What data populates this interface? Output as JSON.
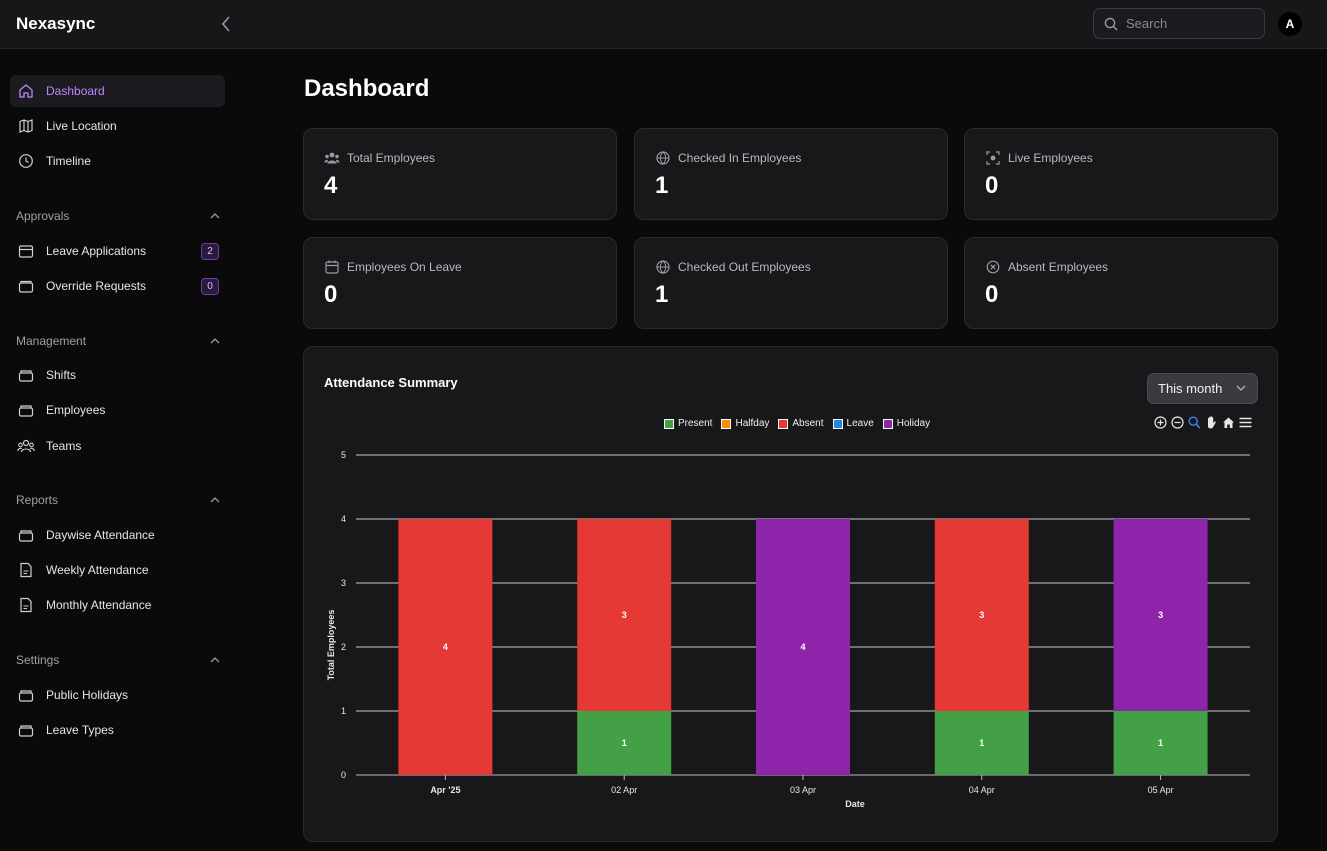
{
  "header": {
    "brand": "Nexasync",
    "search_placeholder": "Search",
    "avatar_initial": "A"
  },
  "sidebar": {
    "top_items": [
      {
        "label": "Dashboard",
        "icon": "home-icon",
        "active": true
      },
      {
        "label": "Live Location",
        "icon": "map-icon"
      },
      {
        "label": "Timeline",
        "icon": "clock-icon"
      }
    ],
    "sections": [
      {
        "title": "Approvals",
        "items": [
          {
            "label": "Leave Applications",
            "icon": "calendar-icon",
            "badge": "2"
          },
          {
            "label": "Override Requests",
            "icon": "tray-icon",
            "badge": "0"
          }
        ]
      },
      {
        "title": "Management",
        "items": [
          {
            "label": "Shifts",
            "icon": "layers-icon"
          },
          {
            "label": "Employees",
            "icon": "layers-icon"
          },
          {
            "label": "Teams",
            "icon": "users-icon"
          }
        ]
      },
      {
        "title": "Reports",
        "items": [
          {
            "label": "Daywise Attendance",
            "icon": "layers-icon"
          },
          {
            "label": "Weekly Attendance",
            "icon": "document-icon"
          },
          {
            "label": "Monthly Attendance",
            "icon": "document-icon"
          }
        ]
      },
      {
        "title": "Settings",
        "items": [
          {
            "label": "Public Holidays",
            "icon": "layers-icon"
          },
          {
            "label": "Leave Types",
            "icon": "layers-icon"
          }
        ]
      }
    ]
  },
  "main": {
    "title": "Dashboard",
    "stats": [
      {
        "label": "Total Employees",
        "value": "4",
        "icon": "users-icon"
      },
      {
        "label": "Checked In Employees",
        "value": "1",
        "icon": "globe-icon"
      },
      {
        "label": "Live Employees",
        "value": "0",
        "icon": "target-icon"
      },
      {
        "label": "Employees On Leave",
        "value": "0",
        "icon": "calendar-icon"
      },
      {
        "label": "Checked Out Employees",
        "value": "1",
        "icon": "globe-icon"
      },
      {
        "label": "Absent Employees",
        "value": "0",
        "icon": "x-circle-icon"
      }
    ],
    "attendance": {
      "title": "Attendance Summary",
      "range": "This month"
    }
  },
  "chart_data": {
    "type": "bar",
    "stacked": true,
    "categories": [
      "Apr '25",
      "02 Apr",
      "03 Apr",
      "04 Apr",
      "05 Apr"
    ],
    "series": [
      {
        "name": "Present",
        "color": "#43a047",
        "values": [
          0,
          1,
          0,
          1,
          1
        ]
      },
      {
        "name": "Halfday",
        "color": "#fb8c00",
        "values": [
          0,
          0,
          0,
          0,
          0
        ]
      },
      {
        "name": "Absent",
        "color": "#e53935",
        "values": [
          4,
          3,
          0,
          3,
          0
        ]
      },
      {
        "name": "Leave",
        "color": "#1e88e5",
        "values": [
          0,
          0,
          0,
          0,
          0
        ]
      },
      {
        "name": "Holiday",
        "color": "#8e24aa",
        "values": [
          0,
          0,
          4,
          0,
          3
        ]
      }
    ],
    "xlabel": "Date",
    "ylabel": "Total Employees",
    "ylim": [
      0,
      5
    ],
    "yticks": [
      0,
      1,
      2,
      3,
      4,
      5
    ],
    "grid": true,
    "legend": "top-center"
  }
}
